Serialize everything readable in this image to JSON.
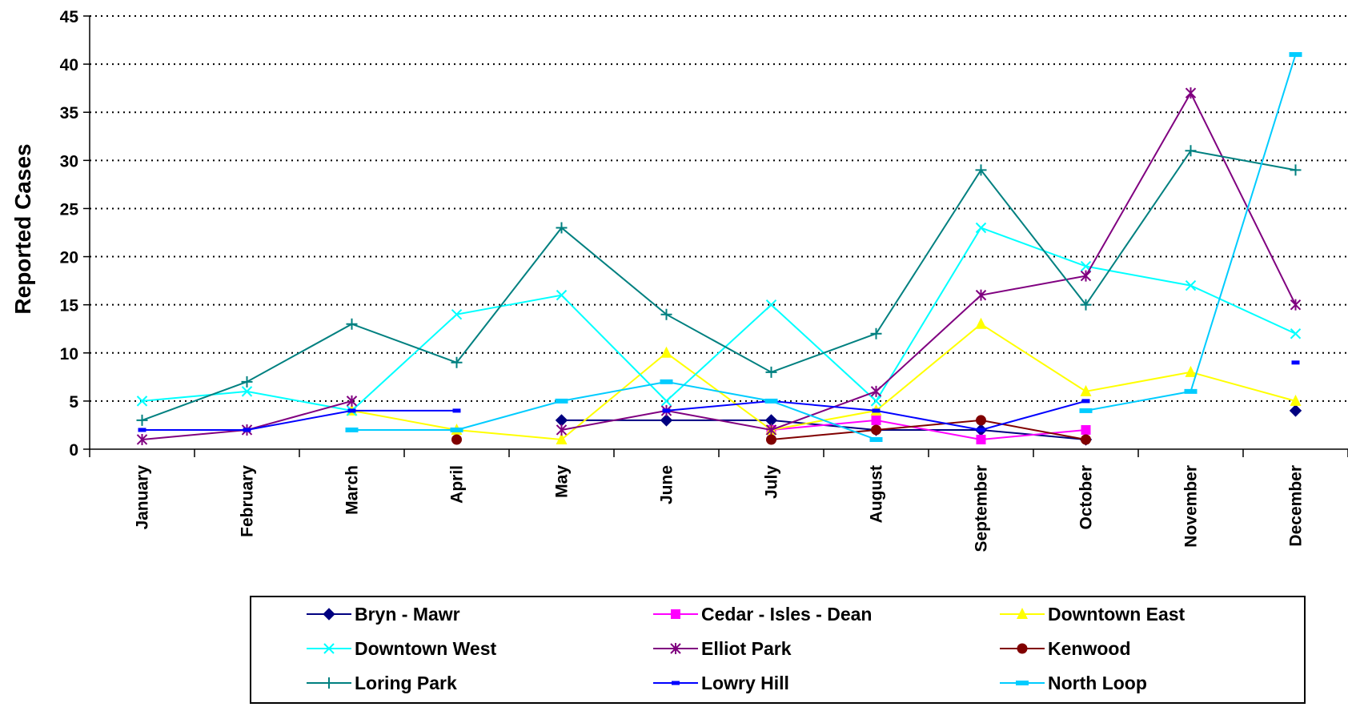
{
  "chart_data": {
    "type": "line",
    "title": "",
    "xlabel": "",
    "ylabel": "Reported Cases",
    "ylim": [
      0,
      45
    ],
    "yticks": [
      "0",
      "5",
      "10",
      "15",
      "20",
      "25",
      "30",
      "35",
      "40",
      "45"
    ],
    "grid": "horizontal dotted",
    "legend_position": "bottom",
    "categories": [
      "January",
      "February",
      "March",
      "April",
      "May",
      "June",
      "July",
      "August",
      "September",
      "October",
      "November",
      "December"
    ],
    "series": [
      {
        "name": "Bryn - Mawr",
        "color": "#000080",
        "marker": "diamond",
        "values": [
          null,
          null,
          null,
          null,
          3,
          3,
          3,
          2,
          2,
          1,
          null,
          4
        ]
      },
      {
        "name": "Cedar - Isles - Dean",
        "color": "#FF00FF",
        "marker": "square",
        "values": [
          null,
          null,
          null,
          null,
          null,
          null,
          2,
          3,
          1,
          2,
          null,
          null
        ]
      },
      {
        "name": "Downtown East",
        "color": "#FFFF00",
        "marker": "triangle",
        "values": [
          null,
          null,
          4,
          2,
          1,
          10,
          2,
          4,
          13,
          6,
          8,
          5
        ]
      },
      {
        "name": "Downtown West",
        "color": "#00FFFF",
        "marker": "x",
        "values": [
          5,
          6,
          4,
          14,
          16,
          5,
          15,
          5,
          23,
          19,
          17,
          12
        ]
      },
      {
        "name": "Elliot Park",
        "color": "#800080",
        "marker": "star",
        "values": [
          1,
          2,
          5,
          null,
          2,
          4,
          2,
          6,
          16,
          18,
          37,
          15
        ]
      },
      {
        "name": "Kenwood",
        "color": "#800000",
        "marker": "circle",
        "values": [
          null,
          null,
          null,
          1,
          null,
          null,
          1,
          2,
          3,
          1,
          null,
          null
        ]
      },
      {
        "name": "Loring Park",
        "color": "#008080",
        "marker": "plus",
        "values": [
          3,
          7,
          13,
          9,
          23,
          14,
          8,
          12,
          29,
          15,
          31,
          29
        ]
      },
      {
        "name": "Lowry Hill",
        "color": "#0000FF",
        "marker": "dash",
        "values": [
          2,
          2,
          4,
          4,
          null,
          4,
          5,
          4,
          2,
          5,
          null,
          9
        ]
      },
      {
        "name": "North Loop",
        "color": "#00CCFF",
        "marker": "bar",
        "values": [
          null,
          null,
          2,
          2,
          5,
          7,
          5,
          1,
          null,
          4,
          6,
          41
        ]
      }
    ]
  }
}
